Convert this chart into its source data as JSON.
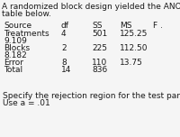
{
  "title_line1": "A randomized block design yielded the ANOVA",
  "title_line2": "table below.",
  "headers": [
    "Source",
    "df",
    "SS",
    "MS",
    "F ."
  ],
  "row1": [
    "Treatments",
    "4",
    "501",
    "125.25",
    ""
  ],
  "row1b": [
    "9.109"
  ],
  "row2": [
    "Blocks",
    "2",
    "225",
    "112.50",
    ""
  ],
  "row2b": [
    "8.182"
  ],
  "row3": [
    "Error",
    "8",
    "110",
    "13.75",
    ""
  ],
  "row4": [
    "Total",
    "14",
    "836",
    "",
    ""
  ],
  "footer1": "Specify the rejection region for the test parts.",
  "footer2": "Use a = .01",
  "bg_color": "#f5f5f5",
  "text_color": "#1a1a1a",
  "font_size": 6.5,
  "col_x_pts": [
    4,
    68,
    102,
    133,
    170
  ],
  "figw": 2.0,
  "figh": 1.52,
  "dpi": 100
}
